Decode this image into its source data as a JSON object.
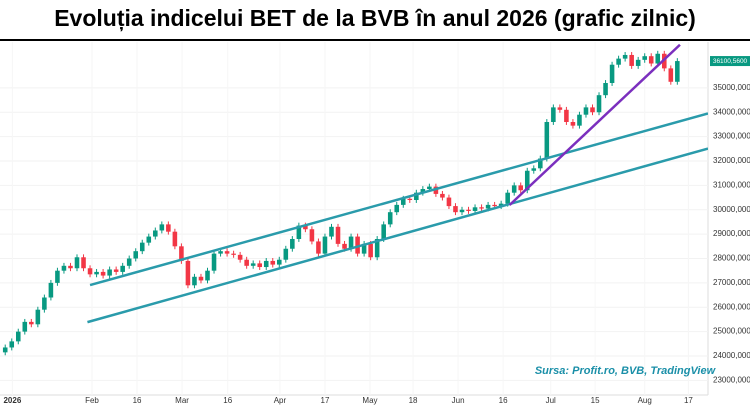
{
  "chart_data": {
    "type": "candlestick",
    "title": "Evoluția indicelui BET de la BVB în anul 2026 (grafic zilnic)",
    "source": "Sursa: Profit.ro, BVB, TradingView",
    "up_color": "#089981",
    "down_color": "#f23645",
    "grid": true,
    "xlim": [
      -0.8,
      107.7
    ],
    "ylim": [
      22400,
      36800
    ],
    "xticks": [
      {
        "value": 1.1,
        "label": "2026"
      },
      {
        "value": 13.3,
        "label": "Feb"
      },
      {
        "value": 20.2,
        "label": "16"
      },
      {
        "value": 27.1,
        "label": "Mar"
      },
      {
        "value": 34.1,
        "label": "16"
      },
      {
        "value": 42.1,
        "label": "Apr"
      },
      {
        "value": 49.0,
        "label": "17"
      },
      {
        "value": 55.9,
        "label": "May"
      },
      {
        "value": 62.5,
        "label": "18"
      },
      {
        "value": 69.4,
        "label": "Jun"
      },
      {
        "value": 76.3,
        "label": "16"
      },
      {
        "value": 83.6,
        "label": "Jul"
      },
      {
        "value": 90.4,
        "label": "15"
      },
      {
        "value": 98.0,
        "label": "Aug"
      },
      {
        "value": 104.7,
        "label": "17"
      }
    ],
    "yticks": [
      {
        "value": 23000,
        "label": "23000,0000"
      },
      {
        "value": 24000,
        "label": "24000,0000"
      },
      {
        "value": 25000,
        "label": "25000,0000"
      },
      {
        "value": 26000,
        "label": "26000,0000"
      },
      {
        "value": 27000,
        "label": "27000,0000"
      },
      {
        "value": 28000,
        "label": "28000,0000"
      },
      {
        "value": 29000,
        "label": "29000,0000"
      },
      {
        "value": 30000,
        "label": "30000,0000"
      },
      {
        "value": 31000,
        "label": "31000,0000"
      },
      {
        "value": 32000,
        "label": "32000,0000"
      },
      {
        "value": 33000,
        "label": "33000,0000"
      },
      {
        "value": 34000,
        "label": "34000,0000"
      },
      {
        "value": 35000,
        "label": "35000,0000"
      }
    ],
    "last_price": {
      "value": 36100.56,
      "label": "36100,5600"
    },
    "open": [
      24150,
      24350,
      24600,
      25000,
      25400,
      25300,
      25900,
      26400,
      27000,
      27500,
      27700,
      27600,
      28050,
      27600,
      27350,
      27450,
      27300,
      27550,
      27450,
      27700,
      28000,
      28300,
      28650,
      28900,
      29150,
      29400,
      29100,
      28500,
      27900,
      26900,
      27250,
      27100,
      27500,
      28200,
      28300,
      28200,
      28150,
      27950,
      27700,
      27800,
      27650,
      27900,
      27750,
      27950,
      28400,
      28800,
      29350,
      29200,
      28700,
      28200,
      28900,
      29300,
      28600,
      28400,
      28900,
      28200,
      28600,
      28050,
      28800,
      29400,
      29900,
      30200,
      30450,
      30400,
      30700,
      30850,
      30950,
      30650,
      30500,
      30150,
      29900,
      30000,
      29950,
      30100,
      30050,
      30200,
      30150,
      30250,
      30700,
      31000,
      30800,
      31600,
      31700,
      32100,
      33600,
      34200,
      34100,
      33600,
      33450,
      33900,
      34200,
      34000,
      34700,
      35200,
      35950,
      36200,
      36350,
      35900,
      36150,
      36300,
      36000,
      36400,
      35800,
      35250
    ],
    "high": [
      24470,
      24720,
      25120,
      25520,
      25520,
      26020,
      26520,
      27120,
      27620,
      27820,
      27820,
      28170,
      28170,
      27720,
      27570,
      27570,
      27670,
      27670,
      27820,
      28120,
      28420,
      28770,
      29020,
      29270,
      29520,
      29520,
      29220,
      28620,
      28020,
      27370,
      27370,
      27620,
      28320,
      28420,
      28420,
      28320,
      28270,
      28070,
      27920,
      27920,
      28020,
      28020,
      28070,
      28520,
      28920,
      29470,
      29470,
      29320,
      28820,
      29020,
      29420,
      29420,
      28720,
      29020,
      29020,
      28720,
      28720,
      28920,
      29520,
      30020,
      30320,
      30570,
      30570,
      30820,
      30970,
      31070,
      31070,
      30770,
      30620,
      30270,
      30120,
      30120,
      30220,
      30220,
      30320,
      30320,
      30370,
      30820,
      31120,
      31120,
      31720,
      31820,
      32220,
      33720,
      34320,
      34320,
      34220,
      33720,
      34020,
      34320,
      34320,
      34820,
      35320,
      36070,
      36320,
      36470,
      36470,
      36270,
      36420,
      36420,
      36520,
      36520,
      35920,
      36220
    ],
    "low": [
      24030,
      24230,
      24480,
      24880,
      25180,
      25180,
      25780,
      26280,
      26880,
      27380,
      27480,
      27480,
      27480,
      27230,
      27230,
      27180,
      27180,
      27330,
      27330,
      27580,
      27880,
      28180,
      28530,
      28780,
      29030,
      28980,
      28380,
      27780,
      26780,
      26780,
      26980,
      26980,
      27380,
      28080,
      28080,
      28030,
      27830,
      27580,
      27580,
      27530,
      27530,
      27630,
      27630,
      27830,
      28280,
      28680,
      29080,
      28580,
      28080,
      28080,
      28780,
      28480,
      28280,
      28280,
      28080,
      28080,
      27930,
      27930,
      28680,
      29280,
      29780,
      30080,
      30280,
      30280,
      30580,
      30730,
      30530,
      30380,
      30030,
      29780,
      29780,
      29830,
      29830,
      29930,
      29930,
      30030,
      30030,
      30130,
      30580,
      30680,
      30680,
      31480,
      31580,
      31980,
      33480,
      33980,
      33480,
      33330,
      33330,
      33780,
      33880,
      33880,
      34580,
      35080,
      35830,
      36080,
      35780,
      35780,
      36030,
      35880,
      35880,
      35680,
      35130,
      35130
    ],
    "close": [
      24350,
      24600,
      25000,
      25400,
      25300,
      25900,
      26400,
      27000,
      27500,
      27700,
      27600,
      28050,
      27600,
      27350,
      27450,
      27300,
      27550,
      27450,
      27700,
      28000,
      28300,
      28650,
      28900,
      29150,
      29400,
      29100,
      28500,
      27900,
      26900,
      27250,
      27100,
      27500,
      28200,
      28300,
      28200,
      28150,
      27950,
      27700,
      27800,
      27650,
      27900,
      27750,
      27950,
      28400,
      28800,
      29350,
      29200,
      28700,
      28200,
      28900,
      29300,
      28600,
      28400,
      28900,
      28200,
      28600,
      28050,
      28800,
      29400,
      29900,
      30200,
      30450,
      30400,
      30700,
      30850,
      30950,
      30650,
      30500,
      30150,
      29900,
      30000,
      29950,
      30100,
      30050,
      30200,
      30150,
      30250,
      30700,
      31000,
      30800,
      31600,
      31700,
      32100,
      33600,
      34200,
      34100,
      33600,
      33450,
      33900,
      34200,
      34000,
      34700,
      35200,
      35950,
      36200,
      36350,
      35900,
      36150,
      36300,
      36000,
      36400,
      35800,
      35250,
      36100
    ],
    "lines": [
      {
        "x": [
          13,
          107.7
        ],
        "y": [
          26910,
          33950
        ],
        "color": "#2a9bab"
      },
      {
        "x": [
          12.6,
          107.7
        ],
        "y": [
          25390,
          32510
        ],
        "color": "#2a9bab"
      },
      {
        "x": [
          77.3,
          103.4
        ],
        "y": [
          30195,
          36770
        ],
        "color": "#7b2fbe"
      }
    ]
  }
}
